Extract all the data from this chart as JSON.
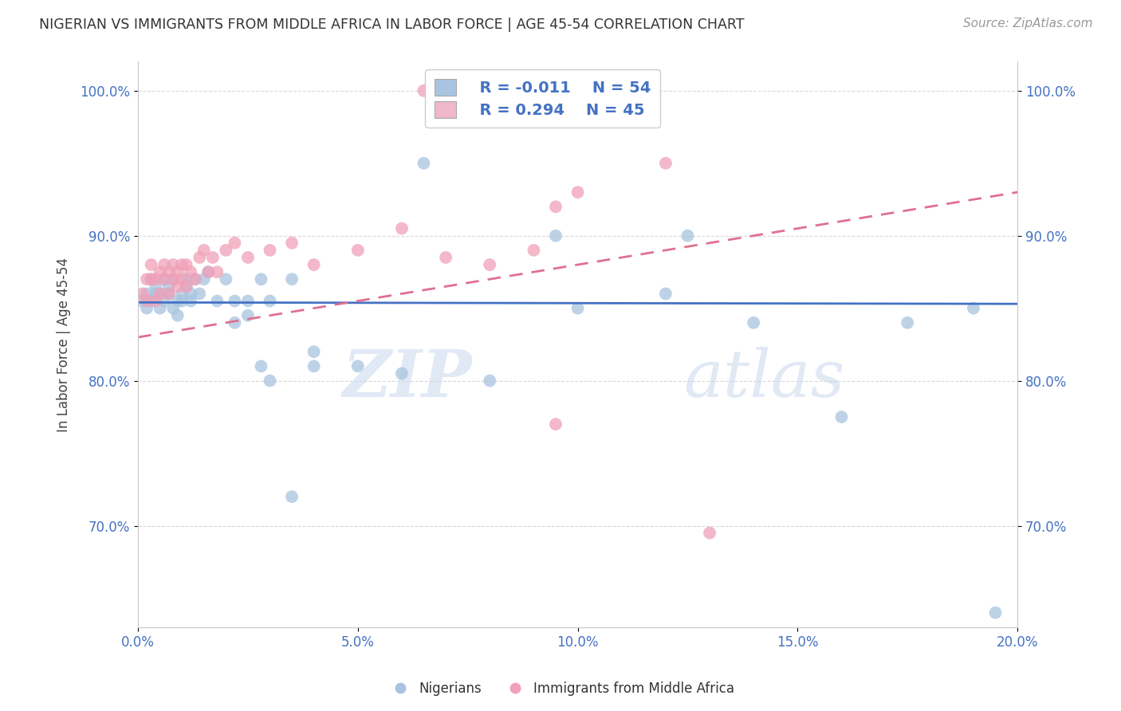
{
  "title": "NIGERIAN VS IMMIGRANTS FROM MIDDLE AFRICA IN LABOR FORCE | AGE 45-54 CORRELATION CHART",
  "source": "Source: ZipAtlas.com",
  "ylabel": "In Labor Force | Age 45-54",
  "xmin": 0.0,
  "xmax": 0.2,
  "ymin": 0.63,
  "ymax": 1.02,
  "blue_R": -0.011,
  "blue_N": 54,
  "pink_R": 0.294,
  "pink_N": 45,
  "blue_color": "#a8c4e0",
  "pink_color": "#f0a0b8",
  "blue_line_color": "#4472c4",
  "pink_line_color": "#e07090",
  "legend_color_blue": "#a8c4e0",
  "legend_color_pink": "#f0b8c8",
  "text_color": "#4472c4",
  "blue_scatter_x": [
    0.001,
    0.002,
    0.002,
    0.003,
    0.003,
    0.004,
    0.004,
    0.005,
    0.005,
    0.006,
    0.006,
    0.007,
    0.007,
    0.008,
    0.008,
    0.009,
    0.009,
    0.01,
    0.01,
    0.011,
    0.011,
    0.012,
    0.012,
    0.013,
    0.014,
    0.015,
    0.016,
    0.018,
    0.02,
    0.022,
    0.025,
    0.028,
    0.022,
    0.025,
    0.03,
    0.035,
    0.04,
    0.05,
    0.06,
    0.065,
    0.08,
    0.095,
    0.1,
    0.12,
    0.125,
    0.14,
    0.16,
    0.175,
    0.19,
    0.195,
    0.028,
    0.03,
    0.035,
    0.04
  ],
  "blue_scatter_y": [
    0.855,
    0.86,
    0.85,
    0.87,
    0.855,
    0.86,
    0.865,
    0.85,
    0.86,
    0.87,
    0.855,
    0.865,
    0.86,
    0.85,
    0.87,
    0.855,
    0.845,
    0.86,
    0.855,
    0.865,
    0.87,
    0.855,
    0.86,
    0.87,
    0.86,
    0.87,
    0.875,
    0.855,
    0.87,
    0.855,
    0.845,
    0.87,
    0.84,
    0.855,
    0.855,
    0.87,
    0.82,
    0.81,
    0.805,
    0.95,
    0.8,
    0.9,
    0.85,
    0.86,
    0.9,
    0.84,
    0.775,
    0.84,
    0.85,
    0.64,
    0.81,
    0.8,
    0.72,
    0.81
  ],
  "pink_scatter_x": [
    0.001,
    0.002,
    0.002,
    0.003,
    0.003,
    0.004,
    0.004,
    0.005,
    0.005,
    0.006,
    0.006,
    0.007,
    0.007,
    0.008,
    0.008,
    0.009,
    0.009,
    0.01,
    0.01,
    0.011,
    0.011,
    0.012,
    0.013,
    0.014,
    0.015,
    0.016,
    0.017,
    0.018,
    0.02,
    0.022,
    0.025,
    0.03,
    0.035,
    0.04,
    0.05,
    0.06,
    0.07,
    0.08,
    0.09,
    0.095,
    0.1,
    0.12,
    0.13,
    0.095,
    0.065
  ],
  "pink_scatter_y": [
    0.86,
    0.87,
    0.855,
    0.88,
    0.87,
    0.87,
    0.855,
    0.875,
    0.86,
    0.87,
    0.88,
    0.86,
    0.875,
    0.87,
    0.88,
    0.865,
    0.875,
    0.87,
    0.88,
    0.865,
    0.88,
    0.875,
    0.87,
    0.885,
    0.89,
    0.875,
    0.885,
    0.875,
    0.89,
    0.895,
    0.885,
    0.89,
    0.895,
    0.88,
    0.89,
    0.905,
    0.885,
    0.88,
    0.89,
    0.92,
    0.93,
    0.95,
    0.695,
    0.77,
    1.0
  ],
  "blue_line_x": [
    0.0,
    0.2
  ],
  "blue_line_y": [
    0.854,
    0.853
  ],
  "pink_line_x": [
    0.0,
    0.2
  ],
  "pink_line_y": [
    0.83,
    0.93
  ],
  "xtick_labels": [
    "0.0%",
    "5.0%",
    "10.0%",
    "15.0%",
    "20.0%"
  ],
  "xtick_values": [
    0.0,
    0.05,
    0.1,
    0.15,
    0.2
  ],
  "ytick_labels": [
    "70.0%",
    "80.0%",
    "90.0%",
    "100.0%"
  ],
  "ytick_values": [
    0.7,
    0.8,
    0.9,
    1.0
  ],
  "grid_color": "#d8d8d8",
  "background_color": "#ffffff",
  "watermark_zip": "ZIP",
  "watermark_atlas": "atlas",
  "legend_label_blue": "Nigerians",
  "legend_label_pink": "Immigrants from Middle Africa"
}
